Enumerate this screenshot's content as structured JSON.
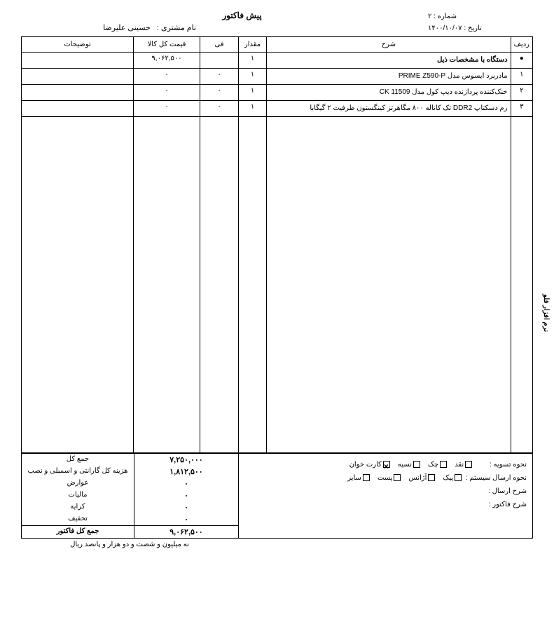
{
  "title": "پیش فاکتور",
  "meta": {
    "number_label": "شماره  :",
    "number_value": "۲",
    "date_label": "تاریخ  :",
    "date_value": "۱۴۰۰/۱۰/۰۷",
    "customer_label": "نام مشتری :",
    "customer_value": "حسینی علیرضا"
  },
  "columns": {
    "row": "ردیف",
    "desc": "شرح",
    "qty": "مقدار",
    "unit": "فی",
    "total": "قیمت کل کالا",
    "notes": "توضیحات"
  },
  "rows": [
    {
      "n": "●",
      "desc": "دستگاه با مشخصات ذیل",
      "qty": "۱",
      "unit": "",
      "total": "۹,۰۶۲,۵۰۰",
      "bold": true
    },
    {
      "n": "۱",
      "desc": "مادربرد ایسوس مدل PRIME Z590-P",
      "qty": "۱",
      "unit": "۰",
      "total": "۰"
    },
    {
      "n": "۲",
      "desc": "خنک‌کننده پردازنده دیپ کول مدل CK 11509",
      "qty": "۱",
      "unit": "۰",
      "total": "۰"
    },
    {
      "n": "۳",
      "desc": "رم دسکتاپ DDR2 تک کاناله ۸۰۰ مگاهرتز کینگستون ظرفیت ۲ گیگابا",
      "qty": "۱",
      "unit": "۰",
      "total": "۰"
    }
  ],
  "footer": {
    "settle_label": "نحوه تسویه",
    "settle_options": [
      {
        "label": "نقد",
        "checked": false
      },
      {
        "label": "چک",
        "checked": false
      },
      {
        "label": "نسیه",
        "checked": false
      },
      {
        "label": "کارت خوان",
        "checked": true
      }
    ],
    "ship_label": "نحوه ارسال سیستم",
    "ship_options": [
      {
        "label": "پیک",
        "checked": false
      },
      {
        "label": "آژانس",
        "checked": false
      },
      {
        "label": "پست",
        "checked": false
      },
      {
        "label": "سایر",
        "checked": false
      }
    ],
    "ship_desc_label": "شرح ارسال",
    "invoice_desc_label": "شرح فاکتور"
  },
  "sums": [
    {
      "label": "جمع کل",
      "value": "۷,۲۵۰,۰۰۰"
    },
    {
      "label": "هزینه کل گارانتی و اسمبلی و نصب",
      "value": "۱,۸۱۲,۵۰۰"
    },
    {
      "label": "عوارض",
      "value": "۰"
    },
    {
      "label": "مالیات",
      "value": "۰"
    },
    {
      "label": "کرایه",
      "value": "۰"
    },
    {
      "label": "تخفیف",
      "value": "۰"
    }
  ],
  "grand": {
    "label": "جمع کل فاکتور",
    "value": "۹,۰۶۲,۵۰۰"
  },
  "words": "نه میلیون و شصت و دو هزار و پانصد ریال",
  "side": "نرم افزار فلو",
  "colon": " :"
}
